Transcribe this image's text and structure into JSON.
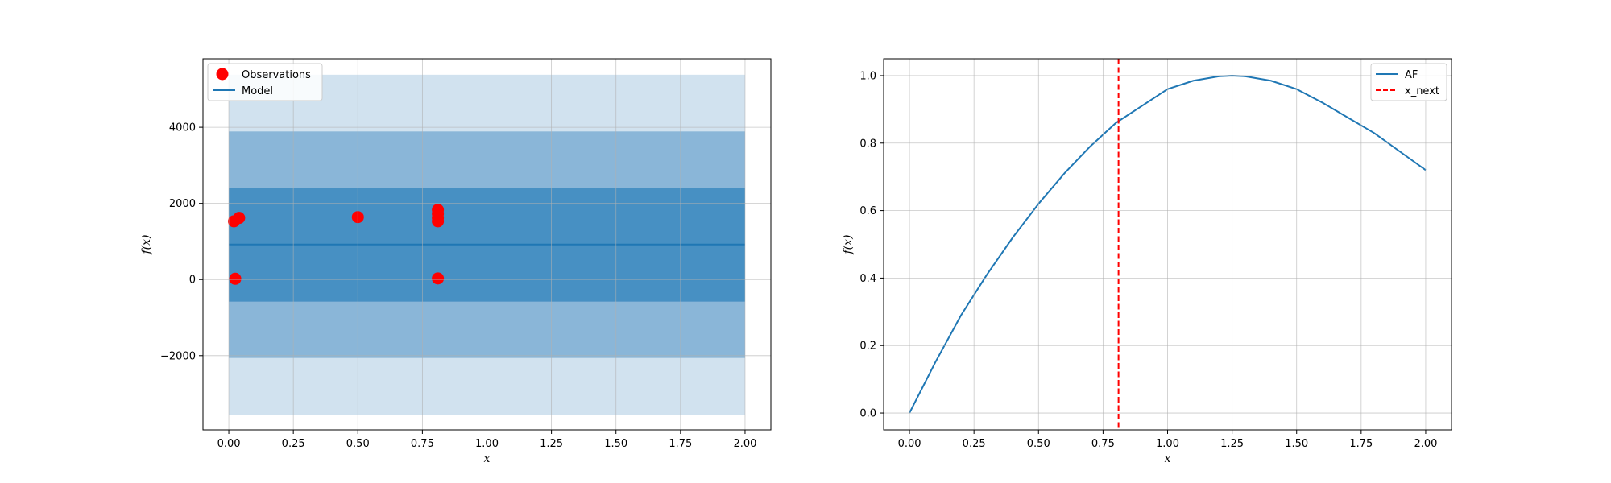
{
  "chart_data": [
    {
      "type": "line",
      "title": "",
      "xlabel": "x",
      "ylabel": "f(x)",
      "xlim": [
        -0.1,
        2.1
      ],
      "ylim": [
        -3950,
        5800
      ],
      "xticks": [
        0.0,
        0.25,
        0.5,
        0.75,
        1.0,
        1.25,
        1.5,
        1.75,
        2.0
      ],
      "xtick_labels": [
        "0.00",
        "0.25",
        "0.50",
        "0.75",
        "1.00",
        "1.25",
        "1.50",
        "1.75",
        "2.00"
      ],
      "yticks": [
        -2000,
        0,
        2000,
        4000
      ],
      "ytick_labels": [
        "−2000",
        "0",
        "2000",
        "4000"
      ],
      "grid": true,
      "legend_position": "top-left",
      "model": {
        "name": "Model",
        "x": [
          0.0,
          2.0
        ],
        "y": [
          920,
          920
        ],
        "color": "#1f77b4"
      },
      "confidence_bands": [
        {
          "lower": -3550,
          "upper": 5380,
          "color": "#d1e2ef"
        },
        {
          "lower": -2060,
          "upper": 3890,
          "color": "#8ab6d8"
        },
        {
          "lower": -580,
          "upper": 2410,
          "color": "#4790c3"
        }
      ],
      "observations": {
        "name": "Observations",
        "color": "#ff0000",
        "points": [
          {
            "x": 0.02,
            "y": 1530
          },
          {
            "x": 0.04,
            "y": 1620
          },
          {
            "x": 0.025,
            "y": 20
          },
          {
            "x": 0.5,
            "y": 1640
          },
          {
            "x": 0.81,
            "y": 1830
          },
          {
            "x": 0.81,
            "y": 1730
          },
          {
            "x": 0.81,
            "y": 1620
          },
          {
            "x": 0.81,
            "y": 1530
          },
          {
            "x": 0.81,
            "y": 30
          }
        ]
      },
      "legend": [
        "Observations",
        "Model"
      ]
    },
    {
      "type": "line",
      "title": "",
      "xlabel": "x",
      "ylabel": "f(x)",
      "xlim": [
        -0.1,
        2.1
      ],
      "ylim": [
        -0.05,
        1.05
      ],
      "xticks": [
        0.0,
        0.25,
        0.5,
        0.75,
        1.0,
        1.25,
        1.5,
        1.75,
        2.0
      ],
      "xtick_labels": [
        "0.00",
        "0.25",
        "0.50",
        "0.75",
        "1.00",
        "1.25",
        "1.50",
        "1.75",
        "2.00"
      ],
      "yticks": [
        0.0,
        0.2,
        0.4,
        0.6,
        0.8,
        1.0
      ],
      "ytick_labels": [
        "0.0",
        "0.2",
        "0.4",
        "0.6",
        "0.8",
        "1.0"
      ],
      "grid": true,
      "legend_position": "top-right",
      "series": [
        {
          "name": "AF",
          "color": "#1f77b4",
          "x": [
            0.0,
            0.1,
            0.2,
            0.3,
            0.4,
            0.5,
            0.6,
            0.7,
            0.8,
            0.9,
            1.0,
            1.1,
            1.2,
            1.25,
            1.3,
            1.4,
            1.5,
            1.6,
            1.7,
            1.8,
            1.9,
            2.0
          ],
          "y": [
            0.0,
            0.15,
            0.29,
            0.41,
            0.52,
            0.62,
            0.71,
            0.79,
            0.86,
            0.91,
            0.96,
            0.985,
            0.998,
            1.0,
            0.998,
            0.985,
            0.96,
            0.92,
            0.875,
            0.83,
            0.775,
            0.72
          ]
        }
      ],
      "vline": {
        "name": "x_next",
        "x": 0.81,
        "color": "#ff0000",
        "style": "dashed"
      },
      "legend": [
        "AF",
        "x_next"
      ]
    }
  ]
}
